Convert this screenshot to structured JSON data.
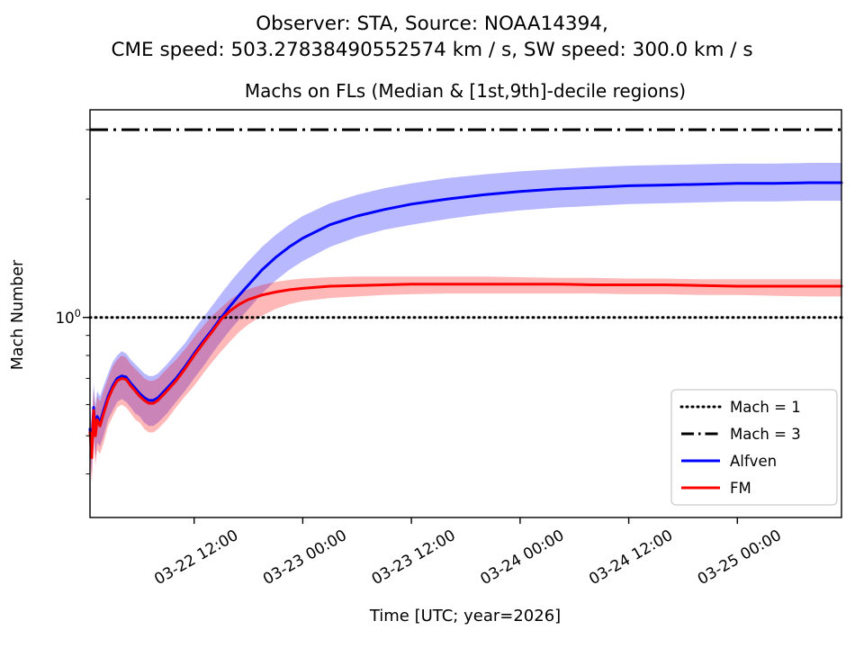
{
  "header": {
    "line1": "Observer: STA, Source: NOAA14394,",
    "line2": "CME speed: 503.27838490552574 km / s, SW speed: 300.0 km / s"
  },
  "chart_data": {
    "type": "line",
    "title": "Machs on FLs (Median & [1st,9th]-decile regions)",
    "xlabel": "Time [UTC; year=2026]",
    "ylabel": "Mach Number",
    "yscale": "log",
    "ylim": [
      0.31,
      3.37
    ],
    "xlim_hours_from_0322_0000": [
      0.5,
      83.5
    ],
    "grid": false,
    "legend_position": "lower right",
    "x_ticks": [
      {
        "hour": 12,
        "label": "03-22 12:00"
      },
      {
        "hour": 24,
        "label": "03-23 00:00"
      },
      {
        "hour": 36,
        "label": "03-23 12:00"
      },
      {
        "hour": 48,
        "label": "03-24 00:00"
      },
      {
        "hour": 60,
        "label": "03-24 12:00"
      },
      {
        "hour": 72,
        "label": "03-25 00:00"
      }
    ],
    "y_tick": {
      "base": "10",
      "exp": "0",
      "value": 1
    },
    "y_minor_ticks": [
      0.4,
      0.5,
      0.6,
      0.7,
      0.8,
      0.9,
      2,
      3
    ],
    "ref_lines": [
      {
        "label": "Mach = 1",
        "value": 1,
        "style": "dotted",
        "color": "#000000"
      },
      {
        "label": "Mach = 3",
        "value": 3,
        "style": "dashdot",
        "color": "#000000"
      }
    ],
    "series": [
      {
        "name": "Alfven",
        "color": "#0000ff",
        "band_opacity": 0.28,
        "x_hours": [
          0.5,
          0.7,
          0.9,
          1.1,
          1.3,
          1.6,
          2,
          2.5,
          3,
          3.5,
          4,
          4.5,
          5,
          5.5,
          6,
          6.5,
          7,
          7.5,
          8,
          9,
          10,
          11,
          12,
          13,
          14,
          15,
          16,
          17,
          18,
          19.5,
          21,
          22.5,
          24,
          27,
          30,
          33,
          36,
          40,
          44,
          48,
          52,
          56,
          60,
          64,
          68,
          72,
          76,
          80,
          83.5
        ],
        "median": [
          0.52,
          0.46,
          0.59,
          0.51,
          0.56,
          0.54,
          0.58,
          0.63,
          0.67,
          0.7,
          0.71,
          0.705,
          0.68,
          0.66,
          0.64,
          0.625,
          0.615,
          0.615,
          0.625,
          0.66,
          0.7,
          0.75,
          0.81,
          0.87,
          0.93,
          1.0,
          1.07,
          1.14,
          1.21,
          1.32,
          1.42,
          1.51,
          1.59,
          1.72,
          1.81,
          1.88,
          1.94,
          2.0,
          2.05,
          2.09,
          2.12,
          2.14,
          2.16,
          2.17,
          2.18,
          2.19,
          2.19,
          2.2,
          2.2
        ],
        "decile_lo": [
          0.45,
          0.4,
          0.51,
          0.44,
          0.48,
          0.47,
          0.5,
          0.55,
          0.58,
          0.61,
          0.62,
          0.61,
          0.59,
          0.57,
          0.56,
          0.54,
          0.53,
          0.53,
          0.54,
          0.57,
          0.61,
          0.65,
          0.7,
          0.75,
          0.81,
          0.87,
          0.93,
          0.99,
          1.05,
          1.15,
          1.24,
          1.32,
          1.39,
          1.51,
          1.6,
          1.67,
          1.72,
          1.78,
          1.83,
          1.87,
          1.9,
          1.92,
          1.94,
          1.95,
          1.96,
          1.97,
          1.97,
          1.98,
          1.98
        ],
        "decile_hi": [
          0.6,
          0.54,
          0.68,
          0.6,
          0.65,
          0.63,
          0.67,
          0.72,
          0.77,
          0.8,
          0.82,
          0.81,
          0.78,
          0.76,
          0.74,
          0.72,
          0.71,
          0.71,
          0.72,
          0.76,
          0.81,
          0.86,
          0.93,
          1.0,
          1.07,
          1.15,
          1.23,
          1.31,
          1.39,
          1.51,
          1.62,
          1.72,
          1.81,
          1.95,
          2.05,
          2.13,
          2.19,
          2.26,
          2.31,
          2.35,
          2.38,
          2.41,
          2.43,
          2.44,
          2.45,
          2.46,
          2.46,
          2.47,
          2.47
        ]
      },
      {
        "name": "FM",
        "color": "#ff0000",
        "band_opacity": 0.28,
        "x_hours": [
          0.5,
          0.7,
          0.9,
          1.1,
          1.3,
          1.6,
          2,
          2.5,
          3,
          3.5,
          4,
          4.5,
          5,
          5.5,
          6,
          6.5,
          7,
          7.5,
          8,
          9,
          10,
          11,
          12,
          13,
          14,
          15,
          16,
          17,
          18,
          19.5,
          21,
          22.5,
          24,
          27,
          30,
          33,
          36,
          40,
          44,
          48,
          52,
          56,
          60,
          64,
          68,
          72,
          76,
          80,
          83.5
        ],
        "median": [
          0.51,
          0.44,
          0.58,
          0.5,
          0.55,
          0.53,
          0.57,
          0.62,
          0.66,
          0.69,
          0.7,
          0.695,
          0.67,
          0.65,
          0.63,
          0.615,
          0.605,
          0.605,
          0.615,
          0.65,
          0.69,
          0.74,
          0.8,
          0.86,
          0.92,
          0.99,
          1.04,
          1.08,
          1.11,
          1.14,
          1.16,
          1.175,
          1.185,
          1.2,
          1.205,
          1.21,
          1.215,
          1.215,
          1.215,
          1.215,
          1.215,
          1.21,
          1.21,
          1.21,
          1.205,
          1.2,
          1.2,
          1.2,
          1.2
        ],
        "decile_lo": [
          0.43,
          0.38,
          0.49,
          0.42,
          0.46,
          0.45,
          0.48,
          0.53,
          0.56,
          0.59,
          0.6,
          0.59,
          0.57,
          0.55,
          0.54,
          0.52,
          0.51,
          0.51,
          0.52,
          0.55,
          0.59,
          0.63,
          0.67,
          0.72,
          0.77,
          0.82,
          0.87,
          0.92,
          0.96,
          1.01,
          1.05,
          1.08,
          1.1,
          1.12,
          1.13,
          1.14,
          1.145,
          1.15,
          1.15,
          1.15,
          1.15,
          1.15,
          1.145,
          1.145,
          1.14,
          1.14,
          1.135,
          1.13,
          1.13
        ],
        "decile_hi": [
          0.58,
          0.52,
          0.66,
          0.58,
          0.63,
          0.61,
          0.65,
          0.7,
          0.75,
          0.78,
          0.8,
          0.79,
          0.76,
          0.74,
          0.72,
          0.7,
          0.69,
          0.69,
          0.7,
          0.74,
          0.78,
          0.83,
          0.89,
          0.95,
          1.01,
          1.06,
          1.11,
          1.15,
          1.18,
          1.21,
          1.23,
          1.245,
          1.255,
          1.265,
          1.27,
          1.27,
          1.27,
          1.27,
          1.27,
          1.265,
          1.26,
          1.26,
          1.255,
          1.255,
          1.25,
          1.25,
          1.25,
          1.25,
          1.25
        ]
      }
    ],
    "legend": [
      "Mach = 1",
      "Mach = 3",
      "Alfven",
      "FM"
    ]
  }
}
